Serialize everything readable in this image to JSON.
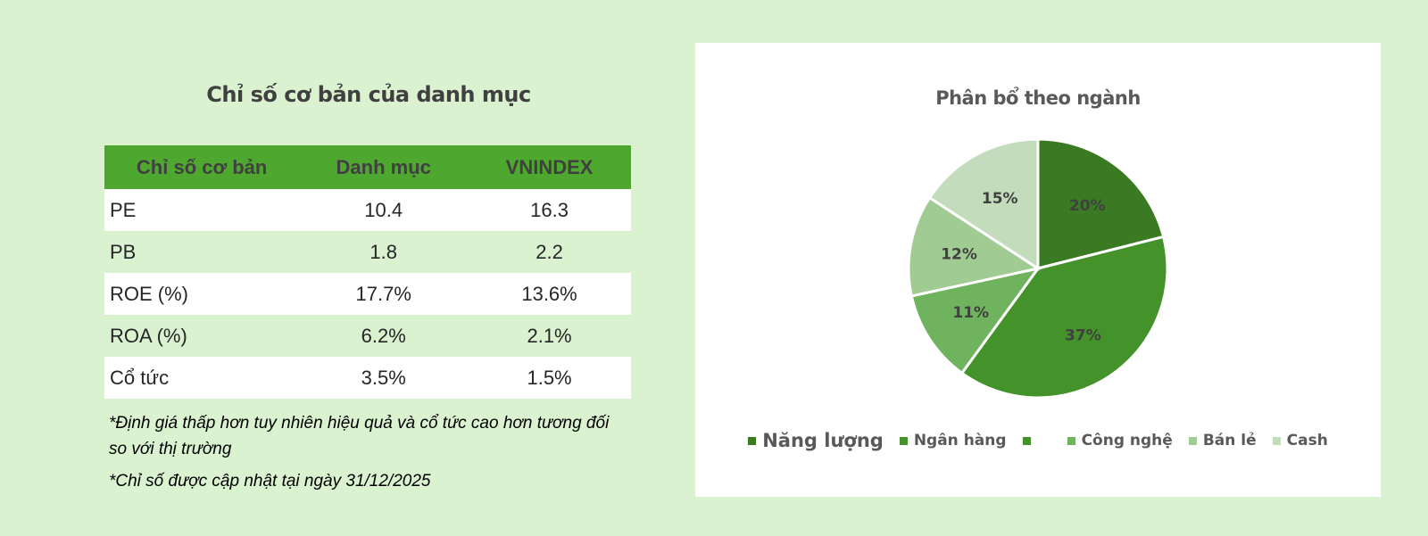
{
  "left": {
    "title": "Chỉ số cơ bản của danh mục",
    "table": {
      "headers": [
        "Chỉ số cơ bản",
        "Danh mục",
        "VNINDEX"
      ],
      "rows": [
        [
          "PE",
          "10.4",
          "16.3"
        ],
        [
          "PB",
          "1.8",
          "2.2"
        ],
        [
          "ROE (%)",
          "17.7%",
          "13.6%"
        ],
        [
          "ROA (%)",
          "6.2%",
          "2.1%"
        ],
        [
          "Cổ tức",
          "3.5%",
          "1.5%"
        ]
      ]
    },
    "note1": "*Định giá thấp hơn tuy nhiên hiệu quả và cổ tức cao hơn tương đối so với thị trường",
    "note2": "*Chỉ số được cập nhật tại ngày 31/12/2025"
  },
  "chart_data": {
    "type": "pie",
    "title": "Phân bổ theo ngành",
    "categories": [
      "Năng lượng",
      "Ngân hàng",
      "",
      "Công nghệ",
      "Bán lẻ",
      "Cash"
    ],
    "values": [
      20,
      37,
      0,
      11,
      12,
      15
    ],
    "labels": [
      "20%",
      "37%",
      "",
      "11%",
      "12%",
      "15%"
    ],
    "colors": [
      "#3a7a22",
      "#43922a",
      "#43922a",
      "#70b35e",
      "#a0cc93",
      "#c2dcbc"
    ],
    "legend_position": "bottom"
  }
}
